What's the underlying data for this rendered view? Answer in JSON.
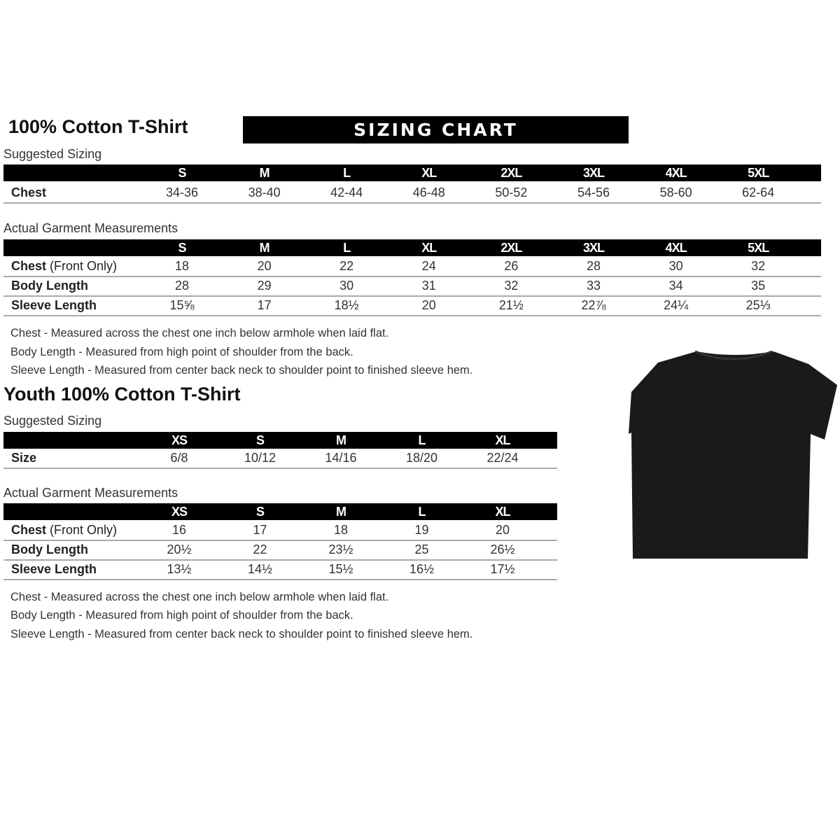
{
  "adult": {
    "title": "100% Cotton T-Shirt",
    "banner": "SIZING CHART",
    "suggested": {
      "label": "Suggested Sizing",
      "sizes": [
        "S",
        "M",
        "L",
        "XL",
        "2XL",
        "3XL",
        "4XL",
        "5XL"
      ],
      "rows": [
        {
          "label": "Chest",
          "values": [
            "34-36",
            "38-40",
            "42-44",
            "46-48",
            "50-52",
            "54-56",
            "58-60",
            "62-64"
          ]
        }
      ]
    },
    "actual": {
      "label": "Actual Garment Measurements",
      "sizes": [
        "S",
        "M",
        "L",
        "XL",
        "2XL",
        "3XL",
        "4XL",
        "5XL"
      ],
      "rows": [
        {
          "label": "Chest",
          "label_note": "(Front Only)",
          "values": [
            "18",
            "20",
            "22",
            "24",
            "26",
            "28",
            "30",
            "32"
          ]
        },
        {
          "label": "Body Length",
          "values": [
            "28",
            "29",
            "30",
            "31",
            "32",
            "33",
            "34",
            "35"
          ]
        },
        {
          "label": "Sleeve Length",
          "values": [
            "15⅝",
            "17",
            "18½",
            "20",
            "21½",
            "22⅞",
            "24¼",
            "25⅓"
          ]
        }
      ]
    },
    "notes": [
      "Chest - Measured across the chest one inch below armhole when laid flat.",
      "Body Length - Measured from high point of shoulder from the back.",
      "Sleeve Length - Measured from center back neck to shoulder point to finished sleeve hem."
    ]
  },
  "youth": {
    "title": "Youth 100% Cotton T-Shirt",
    "suggested": {
      "label": "Suggested Sizing",
      "sizes": [
        "XS",
        "S",
        "M",
        "L",
        "XL"
      ],
      "rows": [
        {
          "label": "Size",
          "values": [
            "6/8",
            "10/12",
            "14/16",
            "18/20",
            "22/24"
          ]
        }
      ]
    },
    "actual": {
      "label": "Actual Garment Measurements",
      "sizes": [
        "XS",
        "S",
        "M",
        "L",
        "XL"
      ],
      "rows": [
        {
          "label": "Chest",
          "label_note": "(Front Only)",
          "values": [
            "16",
            "17",
            "18",
            "19",
            "20"
          ]
        },
        {
          "label": "Body Length",
          "values": [
            "20½",
            "22",
            "23½",
            "25",
            "26½"
          ]
        },
        {
          "label": "Sleeve Length",
          "values": [
            "13½",
            "14½",
            "15½",
            "16½",
            "17½"
          ]
        }
      ]
    },
    "notes": [
      "Chest - Measured across the chest one inch below armhole when laid flat.",
      "Body Length - Measured from high point of shoulder from the back.",
      "Sleeve Length - Measured from center back neck to shoulder point to finished sleeve hem."
    ]
  },
  "image": {
    "icon": "black-tshirt-icon",
    "color": "#1a1a1a"
  }
}
